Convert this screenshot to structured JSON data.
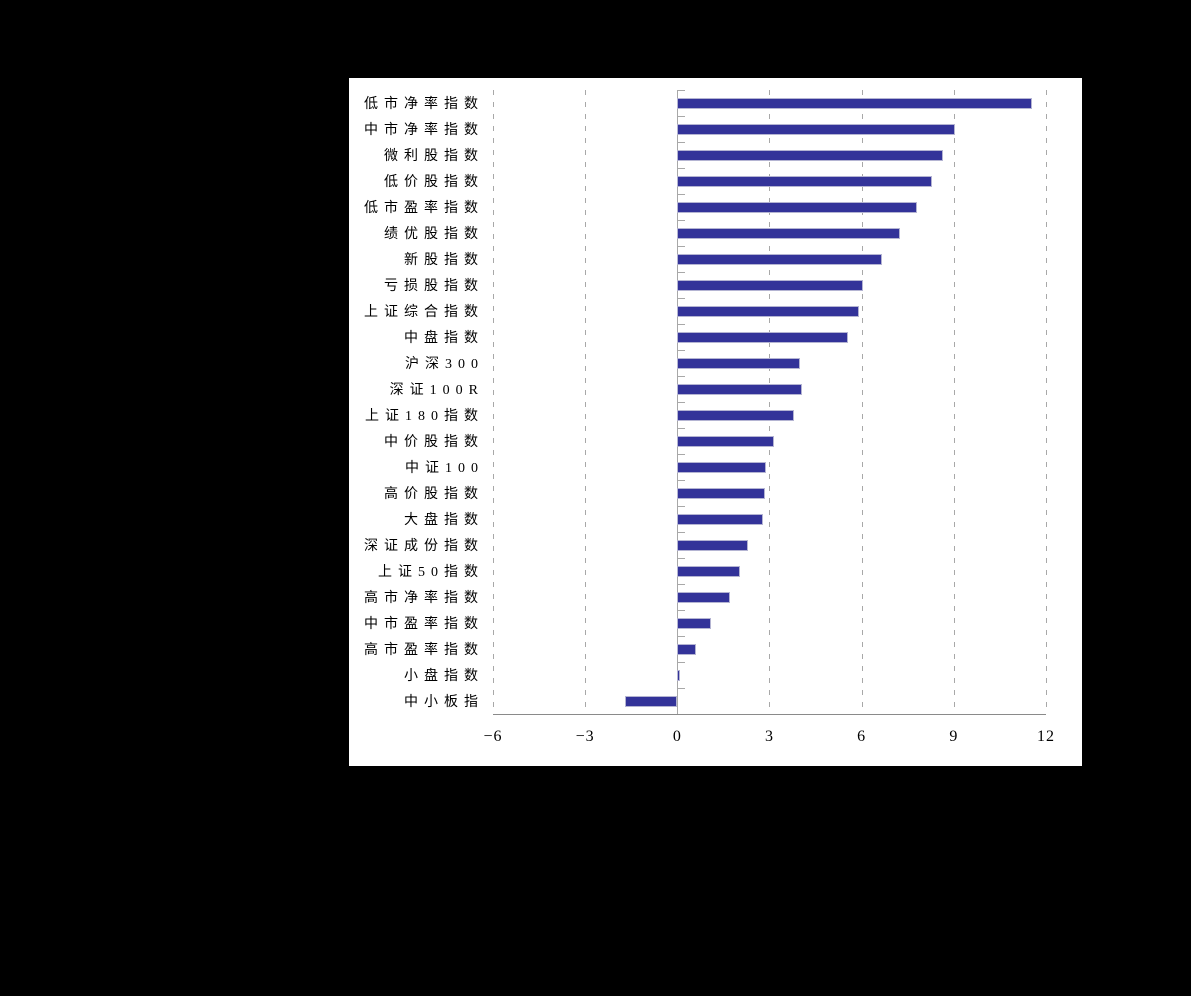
{
  "page": {
    "background": "#000000",
    "panel_background": "#ffffff"
  },
  "chart_data": {
    "type": "bar",
    "orientation": "horizontal",
    "title": "",
    "xlabel": "",
    "ylabel": "",
    "xlim": [
      -6,
      12
    ],
    "x_ticks": [
      -6,
      -3,
      0,
      3,
      6,
      9,
      12
    ],
    "grid": "vertical-dashed",
    "legend": "none",
    "bar_color": "#333399",
    "bar_border_color": "#b4b4d2",
    "categories": [
      "低市净率指数",
      "中市净率指数",
      "微利股指数",
      "低价股指数",
      "低市盈率指数",
      "绩优股指数",
      "新股指数",
      "亏损股指数",
      "上证综合指数",
      "中盘指数",
      "沪深300",
      "深证100R",
      "上证180指数",
      "中价股指数",
      "中证100",
      "高价股指数",
      "大盘指数",
      "深证成份指数",
      "上证50指数",
      "高市净率指数",
      "中市盈率指数",
      "高市盈率指数",
      "小盘指数",
      "中小板指"
    ],
    "values": [
      11.55,
      9.05,
      8.65,
      8.3,
      7.8,
      7.25,
      6.65,
      6.05,
      5.9,
      5.55,
      4.0,
      4.05,
      3.8,
      3.15,
      2.9,
      2.85,
      2.8,
      2.3,
      2.05,
      1.7,
      1.1,
      0.6,
      0.1,
      -1.7
    ]
  }
}
